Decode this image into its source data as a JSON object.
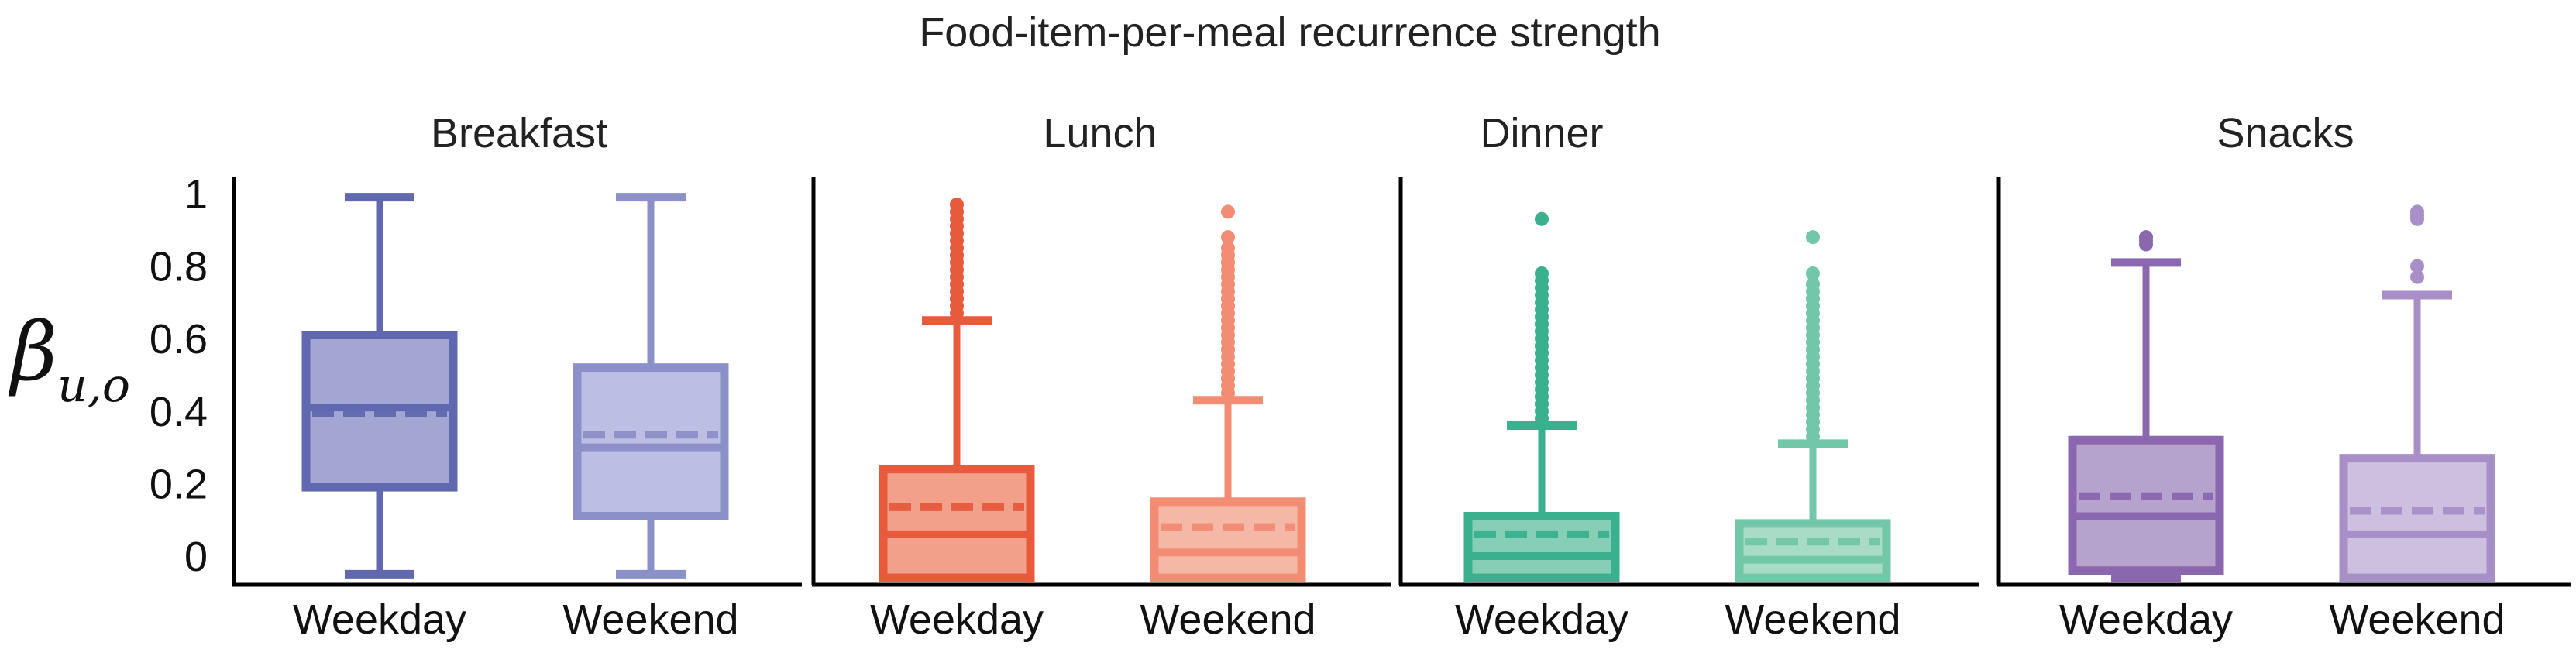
{
  "title": "Food-item-per-meal recurrence strength",
  "y_axis_label": {
    "symbol": "β",
    "subscript": "u,o"
  },
  "y_ticks": [
    "1",
    "0.8",
    "0.6",
    "0.4",
    "0.2",
    "0"
  ],
  "chart_data": [
    {
      "type": "box",
      "title": "Breakfast",
      "categories": [
        "Weekday",
        "Weekend"
      ],
      "ylim": [
        -0.06,
        1.0
      ],
      "boxes": [
        {
          "category": "Weekday",
          "color": "#6068b0",
          "fill": "#a3a6d2",
          "whisker_low": -0.05,
          "q1": 0.19,
          "median": 0.41,
          "mean": 0.395,
          "q3": 0.61,
          "whisker_high": 0.99,
          "outliers": []
        },
        {
          "category": "Weekend",
          "color": "#8c90c8",
          "fill": "#bcbee3",
          "whisker_low": -0.05,
          "q1": 0.11,
          "median": 0.3,
          "mean": 0.335,
          "q3": 0.52,
          "whisker_high": 0.99,
          "outliers": []
        }
      ]
    },
    {
      "type": "box",
      "title": "Lunch",
      "categories": [
        "Weekday",
        "Weekend"
      ],
      "ylim": [
        -0.06,
        1.0
      ],
      "boxes": [
        {
          "category": "Weekday",
          "color": "#e85a3c",
          "fill": "#f2a08a",
          "whisker_low": -0.06,
          "q1": -0.06,
          "median": 0.06,
          "mean": 0.135,
          "q3": 0.24,
          "whisker_high": 0.65,
          "outliers": [
            0.67,
            0.69,
            0.71,
            0.73,
            0.75,
            0.77,
            0.79,
            0.81,
            0.83,
            0.85,
            0.87,
            0.89,
            0.91,
            0.93,
            0.95,
            0.97
          ]
        },
        {
          "category": "Weekend",
          "color": "#f28c73",
          "fill": "#f6b8a6",
          "whisker_low": -0.06,
          "q1": -0.06,
          "median": 0.01,
          "mean": 0.08,
          "q3": 0.15,
          "whisker_high": 0.43,
          "outliers": [
            0.45,
            0.47,
            0.49,
            0.51,
            0.53,
            0.55,
            0.57,
            0.59,
            0.61,
            0.63,
            0.65,
            0.67,
            0.69,
            0.71,
            0.73,
            0.75,
            0.77,
            0.79,
            0.81,
            0.83,
            0.85,
            0.88,
            0.95
          ]
        }
      ]
    },
    {
      "type": "box",
      "title": "Dinner",
      "categories": [
        "Weekday",
        "Weekend"
      ],
      "ylim": [
        -0.06,
        1.0
      ],
      "boxes": [
        {
          "category": "Weekday",
          "color": "#3bb08f",
          "fill": "#86cfb6",
          "whisker_low": -0.06,
          "q1": -0.06,
          "median": 0.0,
          "mean": 0.06,
          "q3": 0.11,
          "whisker_high": 0.36,
          "outliers": [
            0.38,
            0.4,
            0.42,
            0.44,
            0.46,
            0.48,
            0.5,
            0.52,
            0.54,
            0.56,
            0.58,
            0.6,
            0.62,
            0.64,
            0.66,
            0.68,
            0.7,
            0.72,
            0.74,
            0.76,
            0.78,
            0.93
          ]
        },
        {
          "category": "Weekend",
          "color": "#72c7a8",
          "fill": "#a9dcc7",
          "whisker_low": -0.06,
          "q1": -0.06,
          "median": -0.01,
          "mean": 0.04,
          "q3": 0.09,
          "whisker_high": 0.31,
          "outliers": [
            0.33,
            0.35,
            0.37,
            0.39,
            0.41,
            0.43,
            0.45,
            0.47,
            0.49,
            0.51,
            0.53,
            0.55,
            0.57,
            0.59,
            0.61,
            0.63,
            0.65,
            0.67,
            0.69,
            0.71,
            0.73,
            0.75,
            0.78,
            0.88
          ]
        }
      ]
    },
    {
      "type": "box",
      "title": "Snacks",
      "categories": [
        "Weekday",
        "Weekend"
      ],
      "ylim": [
        -0.06,
        1.0
      ],
      "boxes": [
        {
          "category": "Weekday",
          "color": "#8b67b0",
          "fill": "#b5a2cd",
          "whisker_low": -0.06,
          "q1": -0.04,
          "median": 0.11,
          "mean": 0.165,
          "q3": 0.32,
          "whisker_high": 0.81,
          "outliers": [
            0.86,
            0.87,
            0.88
          ]
        },
        {
          "category": "Weekend",
          "color": "#a98fc8",
          "fill": "#cdbfe0",
          "whisker_low": -0.06,
          "q1": -0.06,
          "median": 0.06,
          "mean": 0.125,
          "q3": 0.27,
          "whisker_high": 0.72,
          "outliers": [
            0.77,
            0.8,
            0.93,
            0.94,
            0.95
          ]
        }
      ]
    }
  ]
}
